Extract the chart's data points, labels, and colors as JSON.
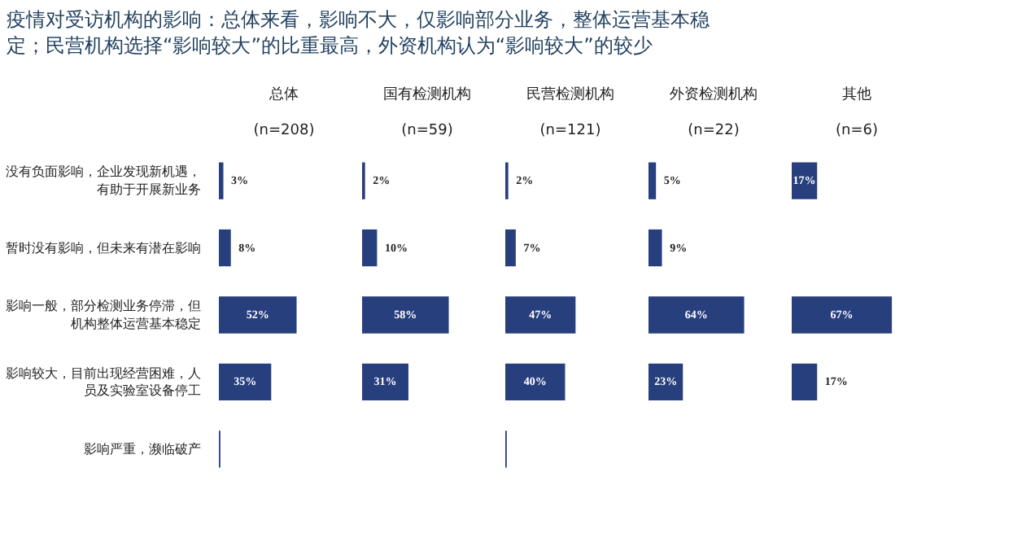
{
  "chart_data": [
    {
      "type": "bar",
      "orientation": "horizontal",
      "title": "总体",
      "subtitle": "(n=208)",
      "annotations": [
        "疫情对受访机构的影响：总体来看，影响不大，仅影响部分业务，整体运营基本稳定；民营机构选择“影响较大”的比重最高，外资机构认为“影响较大”的较少"
      ],
      "categories": [
        "没有负面影响，企业发现新机遇，有助于开展新业务",
        "暂时没有影响，但未来有潜在影响",
        "影响一般，部分检测业务停滞，但机构整体运营基本稳定",
        "影响较大，目前出现经营困难，人员及实验室设备停工",
        "影响严重，濒临破产"
      ],
      "values": [
        3,
        8,
        52,
        35,
        1
      ],
      "value_labels": [
        "3%",
        "8%",
        "52%",
        "35%",
        null
      ],
      "color": "#283f7e",
      "tick_labels": "y",
      "grid": false
    },
    {
      "type": "bar",
      "orientation": "horizontal",
      "title": "国有检测机构",
      "subtitle": "(n=59)",
      "categories": [
        "没有负面影响，企业发现新机遇，有助于开展新业务",
        "暂时没有影响，但未来有潜在影响",
        "影响一般，部分检测业务停滞，但机构整体运营基本稳定",
        "影响较大，目前出现经营困难，人员及实验室设备停工",
        "影响严重，濒临破产"
      ],
      "values": [
        2,
        10,
        58,
        31,
        null
      ],
      "value_labels": [
        "2%",
        "10%",
        "58%",
        "31%",
        null
      ],
      "color": "#283f7e",
      "tick_labels": false,
      "grid": false
    },
    {
      "type": "bar",
      "orientation": "horizontal",
      "title": "民营检测机构",
      "subtitle": "(n=121)",
      "categories": [
        "没有负面影响，企业发现新机遇，有助于开展新业务",
        "暂时没有影响，但未来有潜在影响",
        "影响一般，部分检测业务停滞，但机构整体运营基本稳定",
        "影响较大，目前出现经营困难，人员及实验室设备停工",
        "影响严重，濒临破产"
      ],
      "values": [
        2,
        7,
        47,
        40,
        1
      ],
      "value_labels": [
        "2%",
        "7%",
        "47%",
        "40%",
        null
      ],
      "color": "#283f7e",
      "tick_labels": false,
      "grid": false
    },
    {
      "type": "bar",
      "orientation": "horizontal",
      "title": "外资检测机构",
      "subtitle": "(n=22)",
      "categories": [
        "没有负面影响，企业发现新机遇，有助于开展新业务",
        "暂时没有影响，但未来有潜在影响",
        "影响一般，部分检测业务停滞，但机构整体运营基本稳定",
        "影响较大，目前出现经营困难，人员及实验室设备停工",
        "影响严重，濒临破产"
      ],
      "values": [
        5,
        9,
        64,
        23,
        null
      ],
      "value_labels": [
        "5%",
        "9%",
        "64%",
        "23%",
        null
      ],
      "color": "#283f7e",
      "tick_labels": false,
      "grid": false
    },
    {
      "type": "bar",
      "orientation": "horizontal",
      "title": "其他",
      "subtitle": "(n=6)",
      "categories": [
        "没有负面影响，企业发现新机遇，有助于开展新业务",
        "暂时没有影响，但未来有潜在影响",
        "影响一般，部分检测业务停滞，但机构整体运营基本稳定",
        "影响较大，目前出现经营困难，人员及实验室设备停工",
        "影响严重，濒临破产"
      ],
      "values": [
        17,
        null,
        67,
        17,
        null
      ],
      "value_labels": [
        "17%",
        null,
        "67%",
        "17%",
        null
      ],
      "color": "#283f7e",
      "tick_labels": false,
      "grid": false
    }
  ]
}
